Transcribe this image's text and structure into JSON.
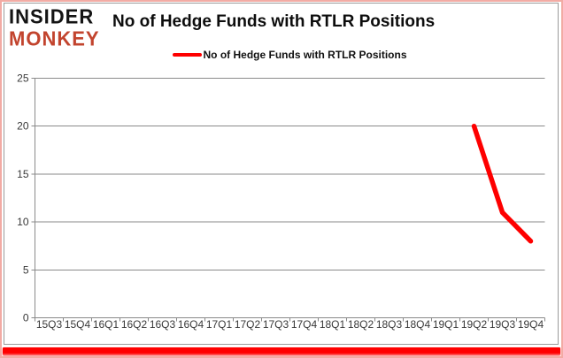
{
  "brand": {
    "line1": "INSIDER",
    "line2": "MONKEY"
  },
  "header": {
    "title": "No of Hedge Funds with RTLR Positions"
  },
  "legend": {
    "label": "No of Hedge Funds with RTLR Positions",
    "swatch_color": "#fe0000"
  },
  "colors": {
    "series_red": "#fe0000",
    "gridline_gray": "#8a8a8a",
    "axis_label": "#383838",
    "logo_black": "#141414",
    "logo_red": "#c2442e",
    "frame_gray": "#9b9b9b",
    "outer_pink": "#f2aba4"
  },
  "chart_data": {
    "type": "line",
    "title": "No of Hedge Funds with RTLR Positions",
    "categories": [
      "15Q3",
      "15Q4",
      "16Q1",
      "16Q2",
      "16Q3",
      "16Q4",
      "17Q1",
      "17Q2",
      "17Q3",
      "17Q4",
      "18Q1",
      "18Q2",
      "18Q3",
      "18Q4",
      "19Q1",
      "19Q2",
      "19Q3",
      "19Q4"
    ],
    "series": [
      {
        "name": "No of Hedge Funds with RTLR Positions",
        "color": "#fe0000",
        "values": [
          null,
          null,
          null,
          null,
          null,
          null,
          null,
          null,
          null,
          null,
          null,
          null,
          null,
          null,
          null,
          20,
          11,
          8
        ]
      }
    ],
    "xlabel": "",
    "ylabel": "",
    "ylim": [
      0,
      25
    ],
    "y_ticks": [
      0,
      5,
      10,
      15,
      20,
      25
    ],
    "grid": true,
    "legend_position": "top-center"
  }
}
